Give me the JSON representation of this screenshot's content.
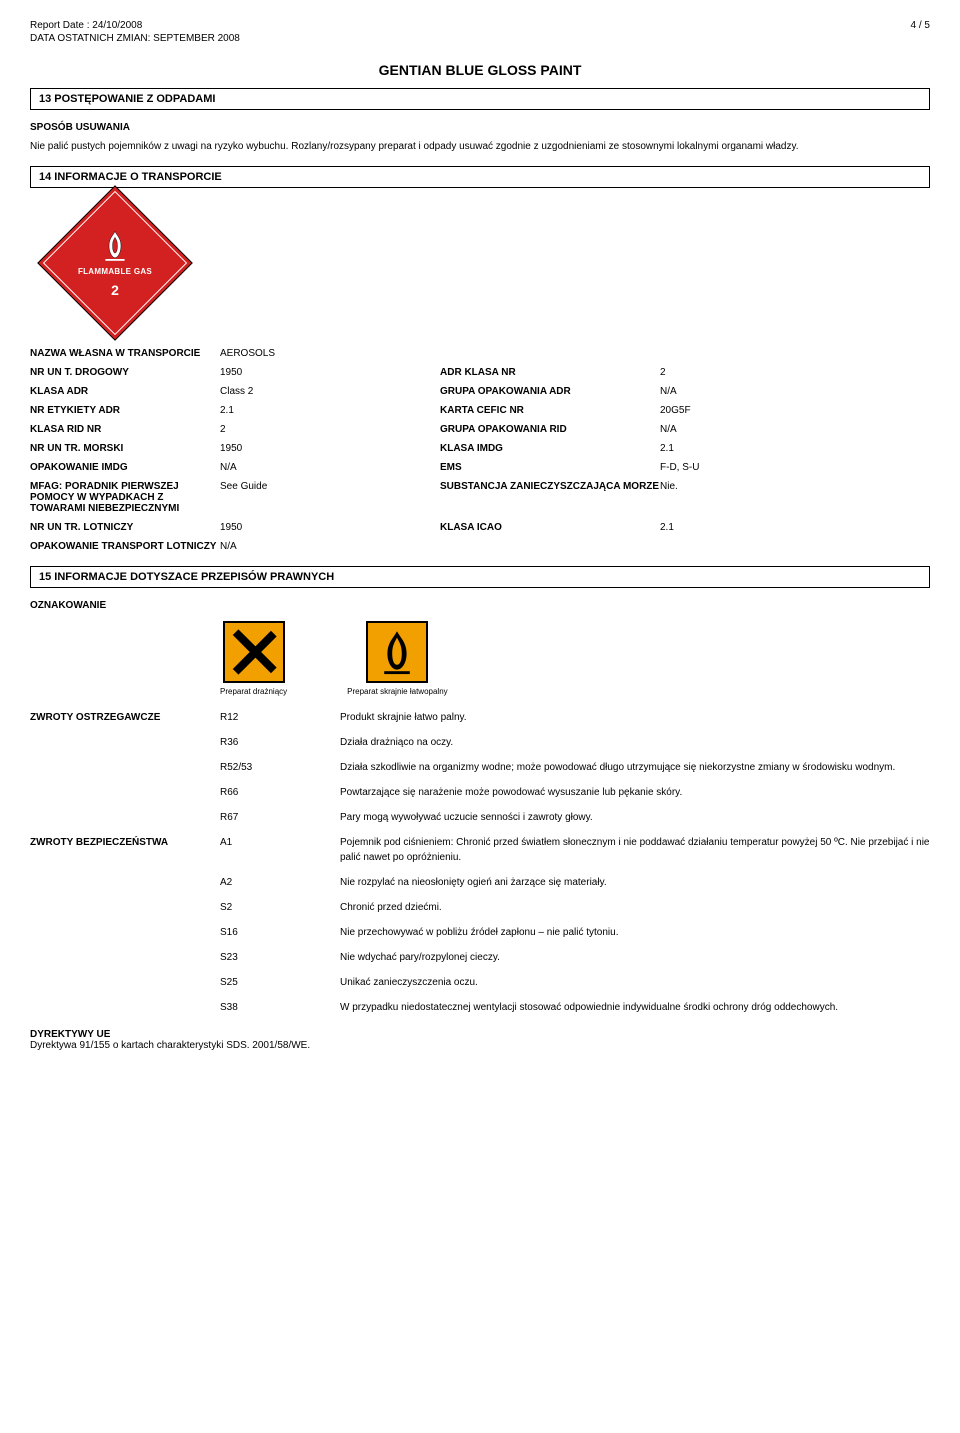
{
  "header": {
    "report_date_label": "Report Date : 24/10/2008",
    "page_indicator": "4   /   5",
    "last_change": "DATA OSTATNICH ZMIAN: SEPTEMBER 2008",
    "title": "GENTIAN BLUE GLOSS PAINT"
  },
  "section13": {
    "bar": "13 POSTĘPOWANIE Z ODPADAMI",
    "disposal_label": "SPOSÓB USUWANIA",
    "disposal_text": "Nie palić pustych pojemników z uwagi na ryzyko wybuchu. Rozlany/rozsypany preparat i odpady usuwać zgodnie z uzgodnieniami ze stosownymi lokalnymi organami władzy."
  },
  "section14": {
    "bar": "14 INFORMACJE O TRANSPORCIE",
    "diamond_text": "FLAMMABLE GAS",
    "diamond_class": "2",
    "rows": [
      {
        "l1": "NAZWA WŁASNA W TRANSPORCIE",
        "v1": "AEROSOLS",
        "l2": "",
        "v2": ""
      },
      {
        "l1": "NR UN T. DROGOWY",
        "v1": "1950",
        "l2": "ADR KLASA NR",
        "v2": "2"
      },
      {
        "l1": "KLASA ADR",
        "v1": "Class 2",
        "l2": "GRUPA OPAKOWANIA ADR",
        "v2": "N/A"
      },
      {
        "l1": "NR ETYKIETY ADR",
        "v1": "2.1",
        "l2": "KARTA CEFIC NR",
        "v2": "20G5F"
      },
      {
        "l1": "KLASA RID NR",
        "v1": "2",
        "l2": "GRUPA OPAKOWANIA RID",
        "v2": "N/A"
      },
      {
        "l1": "NR UN TR. MORSKI",
        "v1": "1950",
        "l2": "KLASA IMDG",
        "v2": "2.1"
      },
      {
        "l1": "OPAKOWANIE IMDG",
        "v1": "N/A",
        "l2": "EMS",
        "v2": "F-D,  S-U"
      },
      {
        "l1": "MFAG: PORADNIK PIERWSZEJ POMOCY W WYPADKACH Z TOWARAMI NIEBEZPIECZNYMI",
        "v1": "See Guide",
        "l2": "SUBSTANCJA ZANIECZYSZCZAJĄCA MORZE",
        "v2": "Nie."
      },
      {
        "l1": "NR UN TR. LOTNICZY",
        "v1": "1950",
        "l2": "KLASA ICAO",
        "v2": "2.1"
      },
      {
        "l1": "OPAKOWANIE TRANSPORT LOTNICZY",
        "v1": "N/A",
        "l2": "",
        "v2": ""
      }
    ]
  },
  "section15": {
    "bar": "15 INFORMACJE DOTYSZACE PRZEPISÓW PRAWNYCH",
    "labelling_label": "OZNAKOWANIE",
    "haz1_caption": "Preparat drażniący",
    "haz2_caption": "Preparat skrajnie łatwopalny",
    "risk_label": "ZWROTY OSTRZEGAWCZE",
    "safety_label": "ZWROTY BEZPIECZEŃSTWA",
    "risk_phrases": [
      {
        "code": "R12",
        "text": "Produkt skrajnie łatwo palny."
      },
      {
        "code": "R36",
        "text": "Działa drażniąco na oczy."
      },
      {
        "code": "R52/53",
        "text": "Działa szkodliwie na organizmy wodne; może powodować długo utrzymujące się niekorzystne zmiany w środowisku wodnym."
      },
      {
        "code": "R66",
        "text": "Powtarzające się narażenie może powodować wysuszanie lub pękanie skóry."
      },
      {
        "code": "R67",
        "text": "Pary mogą wywoływać uczucie senności i zawroty głowy."
      }
    ],
    "safety_phrases": [
      {
        "code": "A1",
        "text": "Pojemnik pod ciśnieniem: Chronić przed światłem słonecznym i nie poddawać działaniu temperatur powyżej 50 ºC. Nie przebijać i nie palić nawet po opróżnieniu."
      },
      {
        "code": "A2",
        "text": "Nie rozpylać na nieosłonięty ogień ani żarzące się materiały."
      },
      {
        "code": "S2",
        "text": "Chronić przed dziećmi."
      },
      {
        "code": "S16",
        "text": "Nie przechowywać w pobliżu źródeł zapłonu – nie palić tytoniu."
      },
      {
        "code": "S23",
        "text": "Nie wdychać pary/rozpylonej cieczy."
      },
      {
        "code": "S25",
        "text": "Unikać zanieczyszczenia oczu."
      },
      {
        "code": "S38",
        "text": "W przypadku niedostatecznej wentylacji stosować odpowiednie indywidualne środki ochrony dróg oddechowych."
      }
    ],
    "directive_label": "DYREKTYWY UE",
    "directive_text": "Dyrektywa 91/155 o kartach charakterystyki SDS. 2001/58/WE."
  },
  "colors": {
    "hazard_orange": "#f2a000",
    "diamond_red": "#d32020"
  }
}
